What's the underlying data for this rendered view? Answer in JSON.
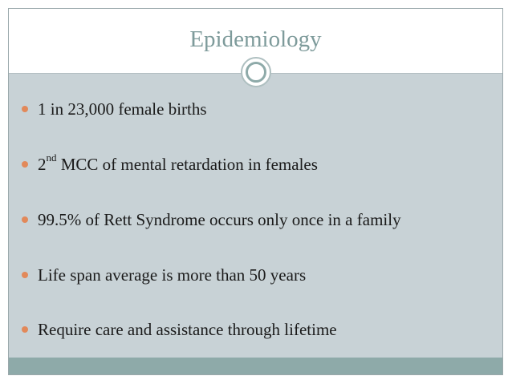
{
  "slide": {
    "title": "Epidemiology",
    "colors": {
      "title": "#7e9b9b",
      "body_background": "#c8d2d6",
      "footer_band": "#8eaaa9",
      "bullet": "#e2895a",
      "text": "#1a1a1a"
    },
    "bullets": [
      {
        "text": "1 in 23,000 female births"
      },
      {
        "prefix": "2",
        "superscript": "nd",
        "text": " MCC of mental retardation in females"
      },
      {
        "text": "99.5% of Rett Syndrome occurs only once in a family"
      },
      {
        "text": "Life span average is more than 50 years"
      },
      {
        "text": "Require care and assistance through lifetime"
      }
    ]
  }
}
